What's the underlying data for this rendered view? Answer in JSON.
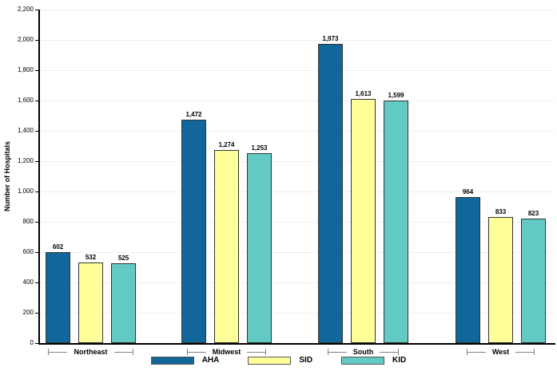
{
  "chart_data": {
    "type": "bar",
    "title": "",
    "xlabel": "",
    "ylabel": "Number of Hospitals",
    "categories": [
      "Northeast",
      "Midwest",
      "South",
      "West"
    ],
    "series": [
      {
        "name": "AHA",
        "color": "#11669A",
        "values": [
          602,
          1472,
          1973,
          964
        ]
      },
      {
        "name": "SID",
        "color": "#FFFF99",
        "values": [
          532,
          1274,
          1613,
          833
        ]
      },
      {
        "name": "KID",
        "color": "#62C9C3",
        "values": [
          525,
          1253,
          1599,
          823
        ]
      }
    ],
    "ylim": [
      0,
      2200
    ],
    "ytick_step": 200,
    "grid": true,
    "legend_position": "bottom",
    "colors": {
      "axis": "#000000",
      "gridline": "#f0f0f0",
      "whisker": "#808080",
      "background": "#ffffff"
    }
  }
}
